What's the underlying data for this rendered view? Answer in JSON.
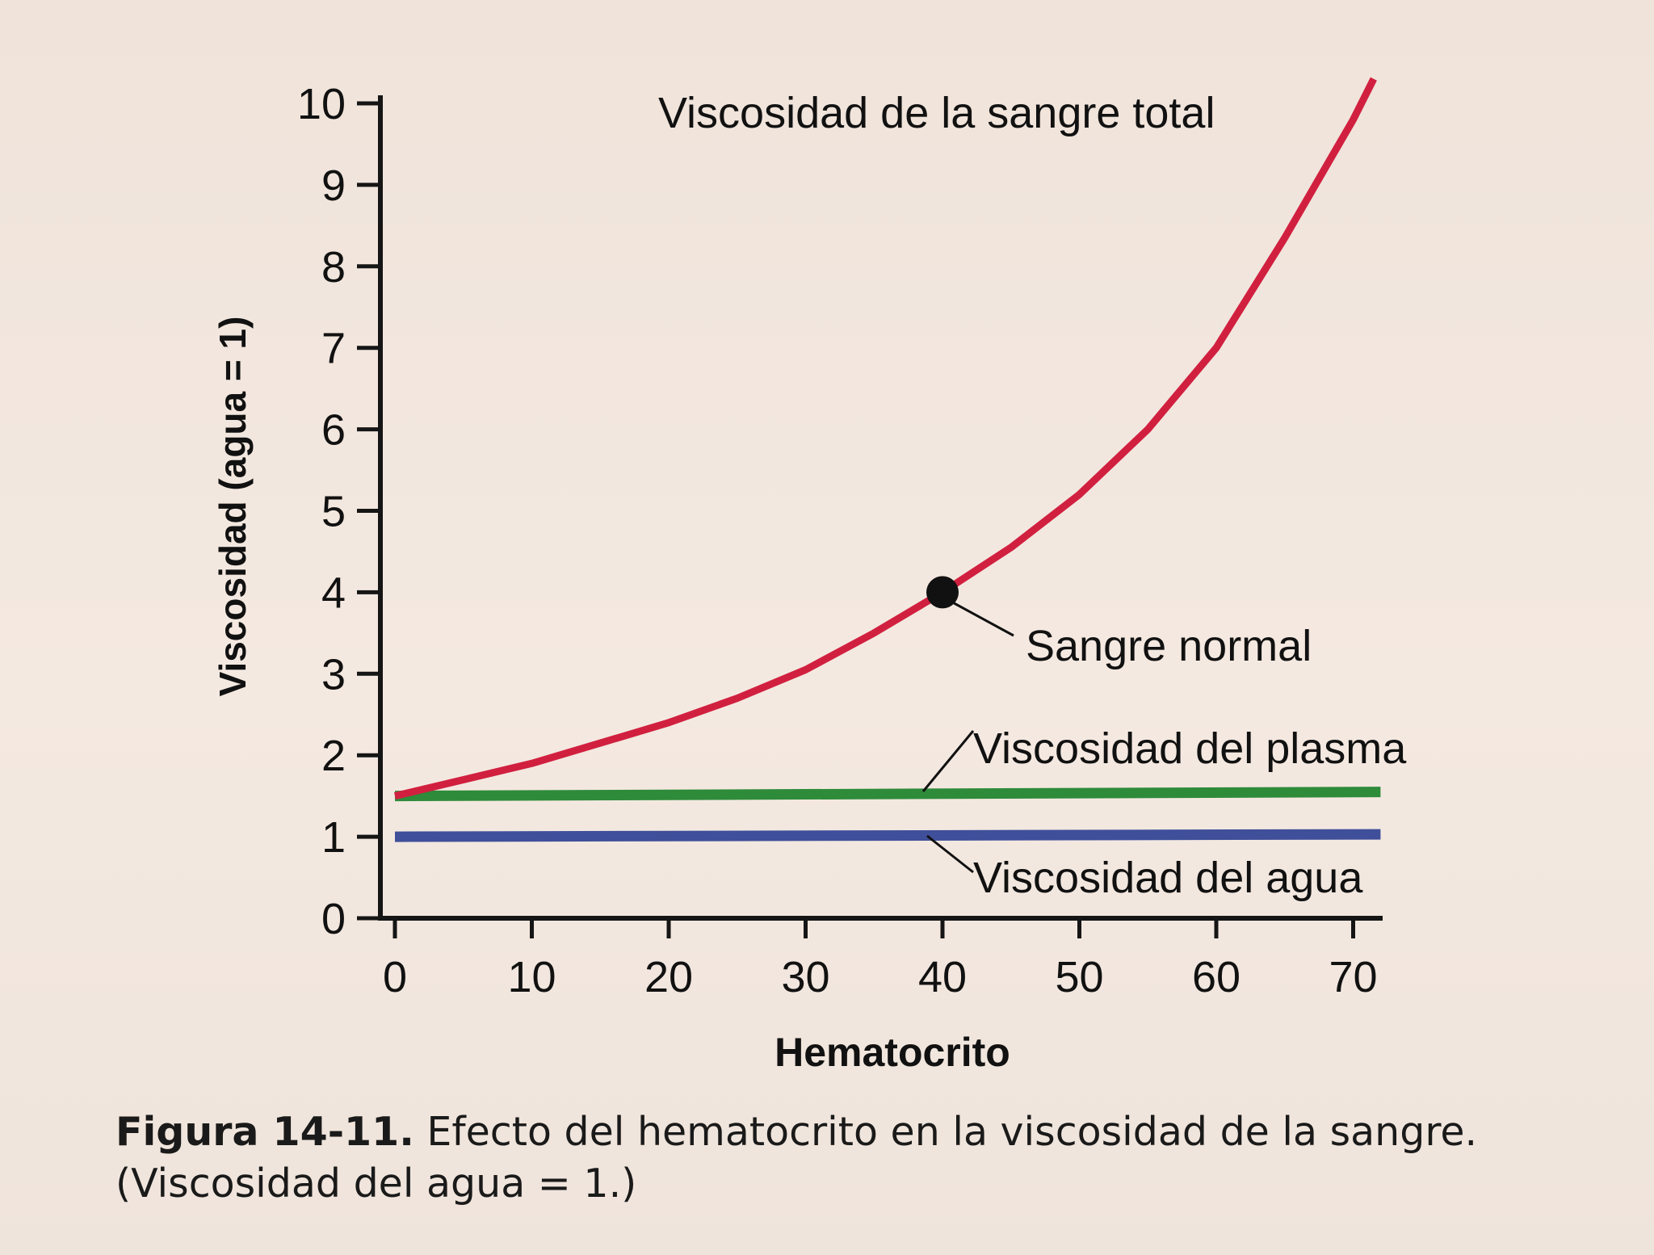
{
  "chart_data": {
    "type": "line",
    "xlabel": "Hematocrito",
    "ylabel": "Viscosidad (agua = 1)",
    "xlim": [
      0,
      72
    ],
    "ylim": [
      0,
      10
    ],
    "x_ticks": [
      "0",
      "10",
      "20",
      "30",
      "40",
      "50",
      "60",
      "70"
    ],
    "y_ticks": [
      "0",
      "1",
      "2",
      "3",
      "4",
      "5",
      "6",
      "7",
      "8",
      "9",
      "10"
    ],
    "grid": false,
    "series": [
      {
        "name": "Viscosidad de la sangre total",
        "color": "#d1203f",
        "x": [
          0,
          5,
          10,
          15,
          20,
          25,
          30,
          35,
          40,
          45,
          50,
          55,
          60,
          65,
          70,
          71.5
        ],
        "y": [
          1.5,
          1.7,
          1.9,
          2.15,
          2.4,
          2.7,
          3.05,
          3.5,
          4.0,
          4.55,
          5.2,
          6.0,
          7.0,
          8.35,
          9.8,
          10.3
        ]
      },
      {
        "name": "Viscosidad del plasma",
        "color": "#2e8b3a",
        "x": [
          0,
          72
        ],
        "y": [
          1.5,
          1.55
        ]
      },
      {
        "name": "Viscosidad del agua",
        "color": "#3f4f9a",
        "x": [
          0,
          72
        ],
        "y": [
          1.0,
          1.03
        ]
      }
    ],
    "points": [
      {
        "label": "Sangre normal",
        "x": 40,
        "y": 4.0
      }
    ],
    "annotations": {
      "total": "Viscosidad de la sangre total",
      "normal": "Sangre normal",
      "plasma": "Viscosidad del plasma",
      "water": "Viscosidad del agua"
    }
  },
  "caption": {
    "label": "Figura 14-11.",
    "text": " Efecto del hematocrito en la viscosidad de la sangre. (Viscosidad del agua = 1.)"
  }
}
